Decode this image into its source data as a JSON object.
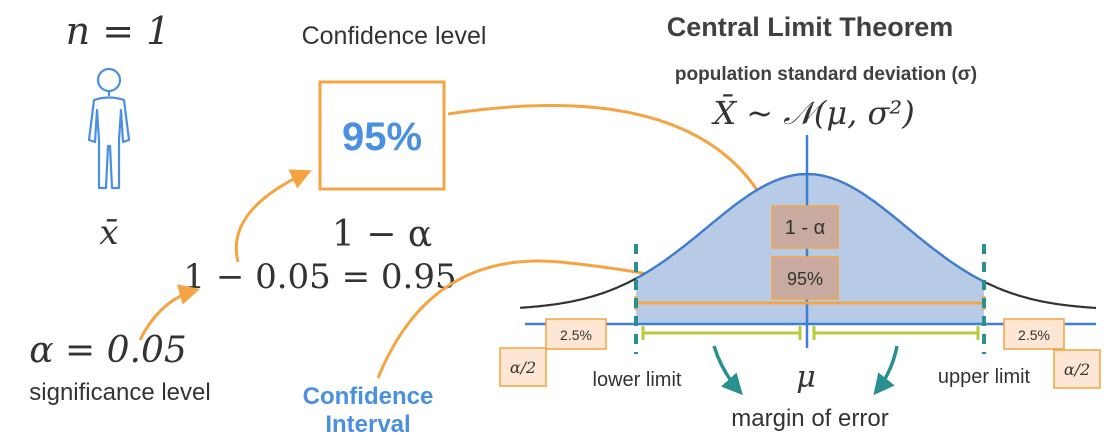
{
  "left": {
    "n_label": "n = 1",
    "person_icon": "person-icon",
    "sample_mean": "x̄",
    "alpha_eq": "α = 0.05",
    "significance": "significance level"
  },
  "center": {
    "confidence_title": "Confidence level",
    "confidence_value": "95%",
    "one_minus_alpha": "1 − α",
    "calc": "1 − 0.05 = 0.95",
    "ci_line1": "Confidence",
    "ci_line2": "Interval"
  },
  "right": {
    "title": "Central Limit Theorem",
    "subtitle": "population standard deviation (σ)",
    "distribution": "X̄ ~ 𝒩(μ, σ²)",
    "box_one_minus_alpha": "1 - α",
    "box_95": "95%",
    "left_tail": "2.5%",
    "right_tail": "2.5%",
    "alpha_half_left": "α/2",
    "alpha_half_right": "α/2",
    "lower_limit": "lower limit",
    "upper_limit": "upper limit",
    "mu": "μ",
    "margin": "margin of error"
  },
  "colors": {
    "orange": "#f5a443",
    "blue_text": "#4a90e2",
    "axis_blue": "#3d7fd6",
    "curve_fill": "#b7cbe6",
    "teal": "#2a8f8f",
    "green": "#b5cc3c",
    "tail_box_fill": "#fde6d4"
  }
}
